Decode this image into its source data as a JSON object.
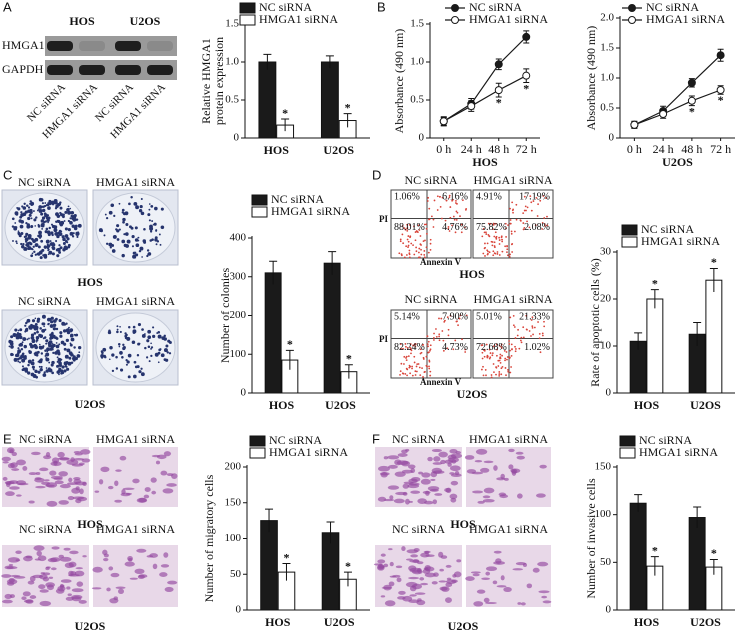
{
  "chart_data": [
    {
      "type": "bar",
      "ylabel": [
        "Relative HMGA1",
        "protein expression"
      ],
      "categories": [
        "HOS",
        "U2OS"
      ],
      "series": [
        {
          "name": "NC siRNA",
          "color": "#1a1a1a",
          "values": [
            1.0,
            1.0
          ],
          "errors": [
            0.1,
            0.08
          ]
        },
        {
          "name": "HMGA1 siRNA",
          "color": "#ffffff",
          "values": [
            0.17,
            0.23
          ],
          "errors": [
            0.08,
            0.09
          ],
          "significance": [
            "*",
            "*"
          ]
        }
      ],
      "ylim": [
        0,
        1.5
      ],
      "yticks": [
        0,
        0.5,
        {
          "value": 1,
          "label": "1.0"
        },
        1.5
      ]
    },
    {
      "type": "line",
      "ylabel": "Absorbance (490 nm)",
      "xlabel": "HOS",
      "categories": [
        "0 h",
        "24 h",
        "48 h",
        "72 h"
      ],
      "series": [
        {
          "name": "NC siRNA",
          "color": "#1a1a1a",
          "marker_fill": "#1a1a1a",
          "values": [
            0.22,
            0.45,
            0.97,
            1.33
          ],
          "errors": [
            0.06,
            0.07,
            0.07,
            0.08
          ]
        },
        {
          "name": "HMGA1 siRNA",
          "color": "#1a1a1a",
          "marker_fill": "#ffffff",
          "values": [
            0.22,
            0.42,
            0.63,
            0.82
          ],
          "errors": [
            0.05,
            0.07,
            0.09,
            0.09
          ],
          "significance": [
            null,
            null,
            "*",
            "*"
          ]
        }
      ],
      "ylim": [
        0,
        1.5
      ],
      "yticks": [
        0,
        0.5,
        {
          "value": 1,
          "label": "1.0"
        },
        1.5
      ]
    },
    {
      "type": "line",
      "ylabel": "Absorbance (490 nm)",
      "xlabel": "U2OS",
      "categories": [
        "0 h",
        "24 h",
        "48 h",
        "72 h"
      ],
      "series": [
        {
          "name": "NC siRNA",
          "color": "#1a1a1a",
          "marker_fill": "#1a1a1a",
          "values": [
            0.22,
            0.45,
            0.92,
            1.38
          ],
          "errors": [
            0.06,
            0.08,
            0.07,
            0.1
          ]
        },
        {
          "name": "HMGA1 siRNA",
          "color": "#1a1a1a",
          "marker_fill": "#ffffff",
          "values": [
            0.22,
            0.4,
            0.62,
            0.8
          ],
          "errors": [
            0.05,
            0.07,
            0.08,
            0.07
          ],
          "significance": [
            null,
            null,
            "*",
            "*"
          ]
        }
      ],
      "ylim": [
        0,
        2
      ],
      "yticks": [
        0,
        0.5,
        {
          "value": 1,
          "label": "1.0"
        },
        1.5,
        {
          "value": 2,
          "label": "2.0"
        }
      ]
    },
    {
      "type": "bar",
      "ylabel": "Number of colonies",
      "categories": [
        "HOS",
        "U2OS"
      ],
      "series": [
        {
          "name": "NC siRNA",
          "color": "#1a1a1a",
          "values": [
            310,
            335
          ],
          "errors": [
            30,
            30
          ]
        },
        {
          "name": "HMGA1 siRNA",
          "color": "#ffffff",
          "values": [
            85,
            55
          ],
          "errors": [
            25,
            18
          ],
          "significance": [
            "*",
            "*"
          ]
        }
      ],
      "ylim": [
        0,
        400
      ],
      "yticks": [
        0,
        100,
        200,
        300,
        400
      ]
    },
    {
      "type": "bar",
      "ylabel": "Rate of apoptotic cells (%)",
      "categories": [
        "HOS",
        "U2OS"
      ],
      "series": [
        {
          "name": "NC siRNA",
          "color": "#1a1a1a",
          "values": [
            11,
            12.5
          ],
          "errors": [
            1.8,
            2.5
          ]
        },
        {
          "name": "HMGA1 siRNA",
          "color": "#ffffff",
          "values": [
            20,
            24
          ],
          "errors": [
            2,
            2.5
          ],
          "significance": [
            "*",
            "*"
          ]
        }
      ],
      "ylim": [
        0,
        30
      ],
      "yticks": [
        0,
        10,
        20,
        30
      ]
    },
    {
      "type": "bar",
      "ylabel": "Number of  migratory cells",
      "categories": [
        "HOS",
        "U2OS"
      ],
      "series": [
        {
          "name": "NC siRNA",
          "color": "#1a1a1a",
          "values": [
            125,
            108
          ],
          "errors": [
            16,
            15
          ]
        },
        {
          "name": "HMGA1 siRNA",
          "color": "#ffffff",
          "values": [
            53,
            43
          ],
          "errors": [
            12,
            10
          ],
          "significance": [
            "*",
            "*"
          ]
        }
      ],
      "ylim": [
        0,
        200
      ],
      "yticks": [
        0,
        50,
        100,
        150,
        200
      ]
    },
    {
      "type": "bar",
      "ylabel": "Number of  invasive cells",
      "categories": [
        "HOS",
        "U2OS"
      ],
      "series": [
        {
          "name": "NC siRNA",
          "color": "#1a1a1a",
          "values": [
            112,
            97
          ],
          "errors": [
            9,
            11
          ]
        },
        {
          "name": "HMGA1 siRNA",
          "color": "#ffffff",
          "values": [
            46,
            45
          ],
          "errors": [
            10,
            8
          ],
          "significance": [
            "*",
            "*"
          ]
        }
      ],
      "ylim": [
        0,
        150
      ],
      "yticks": [
        0,
        50,
        100,
        150
      ]
    }
  ],
  "panels": [
    {
      "letter": "A",
      "groups": [
        "HOS",
        "U2OS"
      ],
      "rows": [
        "HMGA1",
        "GAPDH"
      ],
      "lanes": [
        "NC siRNA",
        "HMGA1 siRNA",
        "NC siRNA",
        "HMGA1 siRNA"
      ]
    },
    {
      "letter": "B"
    },
    {
      "letter": "C",
      "columns": [
        "NC siRNA",
        "HMGA1 siRNA"
      ],
      "rows": [
        "HOS",
        "U2OS"
      ]
    },
    {
      "letter": "D",
      "columns": [
        "NC siRNA",
        "HMGA1 siRNA"
      ],
      "rows": [
        "HOS",
        "U2OS"
      ],
      "y_axis": "PI",
      "x_axis": "Annexin V",
      "quadrants": [
        [
          [
            "1.06%",
            "6.16%",
            "88.01%",
            "4.76%"
          ],
          [
            "4.91%",
            "17.19%",
            "75.82%",
            "2.08%"
          ]
        ],
        [
          [
            "5.14%",
            "7.90%",
            "82.24%",
            "4.73%"
          ],
          [
            "5.01%",
            "21.33%",
            "72.68%",
            "1.02%"
          ]
        ]
      ]
    },
    {
      "letter": "E",
      "columns": [
        "NC siRNA",
        "HMGA1 siRNA"
      ],
      "rows": [
        "HOS",
        "U2OS"
      ]
    },
    {
      "letter": "F",
      "columns": [
        "NC siRNA",
        "HMGA1 siRNA"
      ],
      "rows": [
        "HOS",
        "U2OS"
      ]
    }
  ]
}
